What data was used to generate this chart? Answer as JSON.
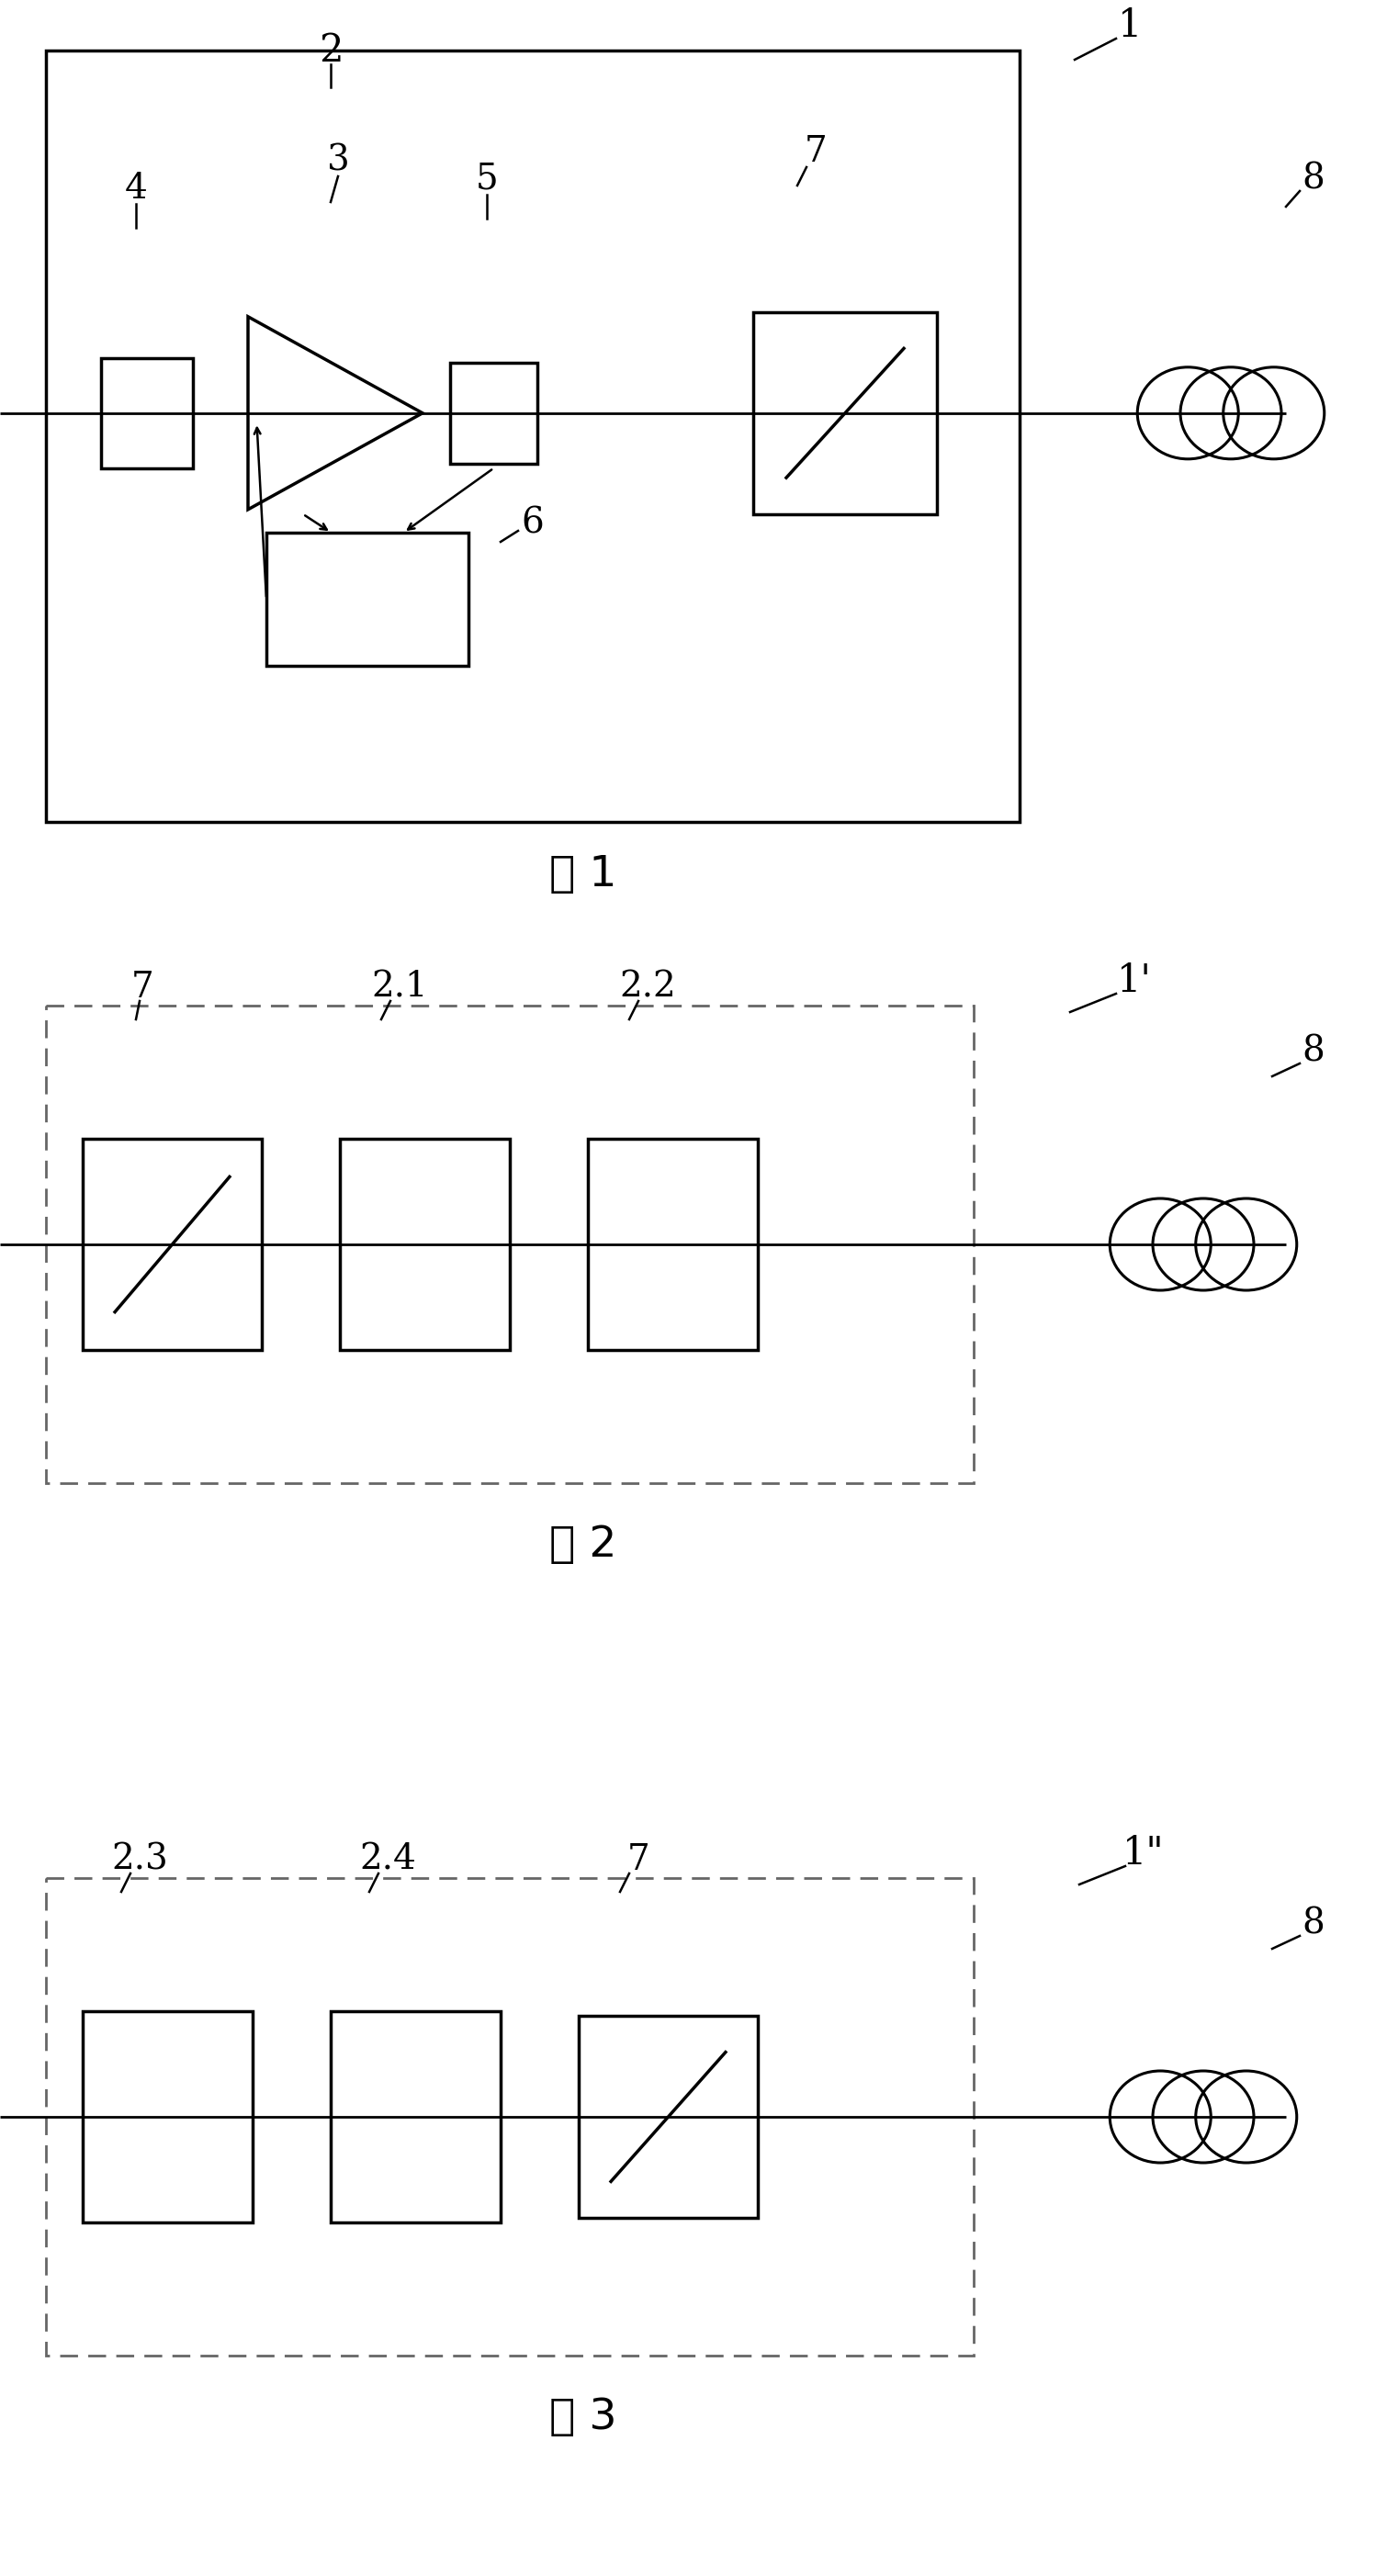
{
  "bg_color": "#ffffff",
  "line_color": "#000000",
  "dashed_color": "#666666",
  "fig1_caption": "图 1",
  "fig2_caption": "图 2",
  "fig3_caption": "图 3",
  "figw": 15.1,
  "figh": 28.05
}
